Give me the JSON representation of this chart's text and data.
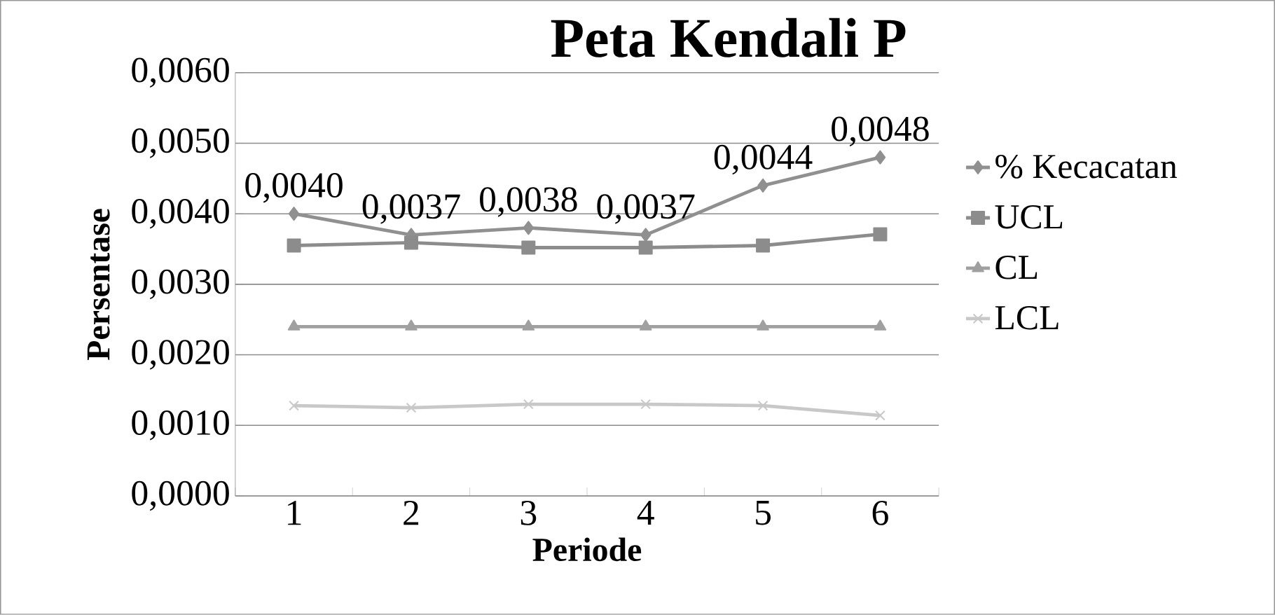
{
  "chart_data": {
    "type": "line",
    "title": "Peta Kendali P",
    "xlabel": "Periode",
    "ylabel": "Persentase",
    "categories": [
      "1",
      "2",
      "3",
      "4",
      "5",
      "6"
    ],
    "series": [
      {
        "name": "% Kecacatan",
        "color": "#909090",
        "marker": "diamond",
        "values": [
          0.004,
          0.0037,
          0.0038,
          0.0037,
          0.0044,
          0.0048
        ],
        "value_labels": [
          "0,0040",
          "0,0037",
          "0,0038",
          "0,0037",
          "0,0044",
          "0,0048"
        ]
      },
      {
        "name": "UCL",
        "color": "#8c8c8c",
        "marker": "square",
        "values": [
          0.00355,
          0.00359,
          0.00352,
          0.00352,
          0.00355,
          0.00371
        ]
      },
      {
        "name": "CL",
        "color": "#a0a0a0",
        "marker": "triangle",
        "values": [
          0.0024,
          0.0024,
          0.0024,
          0.0024,
          0.0024,
          0.0024
        ]
      },
      {
        "name": "LCL",
        "color": "#c8c8c8",
        "marker": "cross",
        "values": [
          0.00128,
          0.00125,
          0.0013,
          0.0013,
          0.00128,
          0.00114
        ]
      }
    ],
    "ylim": [
      0,
      0.006
    ],
    "yticks": [
      {
        "value": 0,
        "label": "0,0000"
      },
      {
        "value": 0.001,
        "label": "0,0010"
      },
      {
        "value": 0.002,
        "label": "0,0020"
      },
      {
        "value": 0.003,
        "label": "0,0030"
      },
      {
        "value": 0.004,
        "label": "0,0040"
      },
      {
        "value": 0.005,
        "label": "0,0050"
      },
      {
        "value": 0.006,
        "label": "0,0060"
      }
    ],
    "grid": "y",
    "legend": "right",
    "line_style": "solid"
  }
}
